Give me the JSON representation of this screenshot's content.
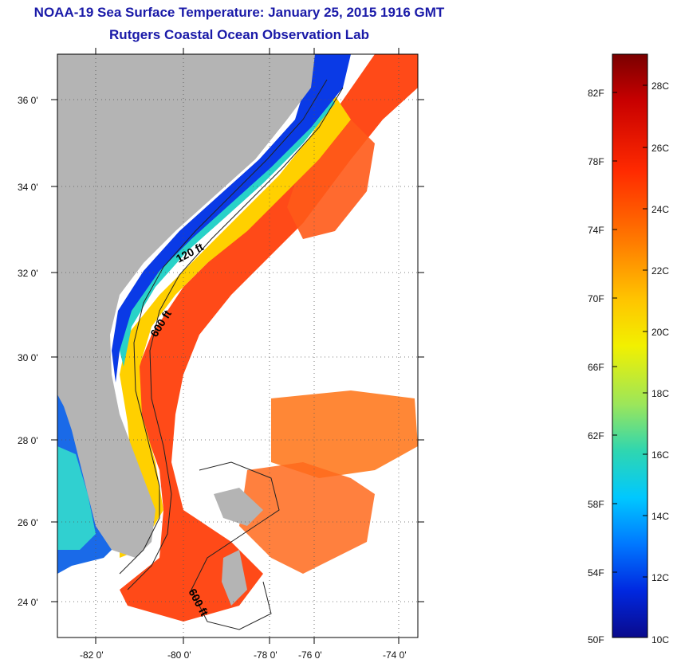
{
  "header": {
    "title": "NOAA-19 Sea Surface Temperature:  January 25, 2015 1916 GMT",
    "subtitle": "Rutgers Coastal Ocean Observation Lab"
  },
  "map": {
    "lat_labels": [
      "36 0'",
      "34 0'",
      "32 0'",
      "30 0'",
      "28 0'",
      "26 0'",
      "24 0'"
    ],
    "lon_labels": [
      "-82 0'",
      "-80 0'",
      "-78 0'",
      "-76 0'",
      "-74 0'"
    ],
    "contours": [
      "120 ft",
      "600 ft",
      "600 ft"
    ],
    "colors": {
      "land": "#b4b4b4",
      "cloud": "#ffffff"
    }
  },
  "colorbar": {
    "fahrenheit_labels": [
      "82F",
      "78F",
      "74F",
      "70F",
      "66F",
      "62F",
      "58F",
      "54F",
      "50F"
    ],
    "celsius_labels": [
      "28C",
      "26C",
      "24C",
      "22C",
      "20C",
      "18C",
      "16C",
      "14C",
      "12C",
      "10C"
    ],
    "range_celsius": [
      10,
      29
    ],
    "colors": [
      "#7a0000",
      "#c80000",
      "#ff2a00",
      "#ff7a00",
      "#ffc400",
      "#f2f000",
      "#9ce65a",
      "#2fd6b0",
      "#00c8ff",
      "#0078ff",
      "#0028e0",
      "#0a0a8c"
    ]
  }
}
